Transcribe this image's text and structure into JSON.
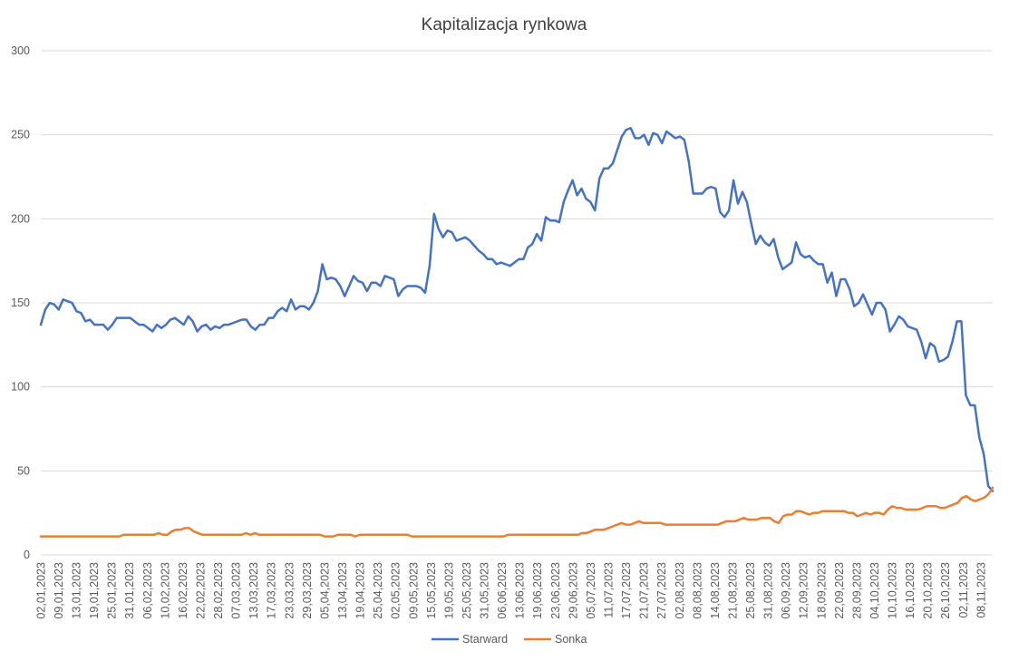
{
  "chart_data": {
    "type": "line",
    "title": "Kapitalizacja rynkowa",
    "xlabel": "",
    "ylabel": "",
    "ylim": [
      0,
      300
    ],
    "yticks": [
      "0",
      "50",
      "100",
      "150",
      "200",
      "250",
      "300"
    ],
    "grid": true,
    "legend_position": "bottom",
    "x_tick_labels": [
      "02,01,2023",
      "09,01,2023",
      "13,01,2023",
      "19,01,2023",
      "25,01,2023",
      "31,01,2023",
      "06,02,2023",
      "10,02,2023",
      "16,02,2023",
      "22,02,2023",
      "28,02,2023",
      "07,03,2023",
      "13,03,2023",
      "17,03,2023",
      "23,03,2023",
      "29,03,2023",
      "05,04,2023",
      "13,04,2023",
      "19,04,2023",
      "25,04,2023",
      "02,05,2023",
      "09,05,2023",
      "15,05,2023",
      "19,05,2023",
      "25,05,2023",
      "31,05,2023",
      "06,06,2023",
      "13,06,2023",
      "19,06,2023",
      "23,06,2023",
      "29,06,2023",
      "05,07,2023",
      "11,07,2023",
      "17,07,2023",
      "21,07,2023",
      "27,07,2023",
      "02,08,2023",
      "08,08,2023",
      "14,08,2023",
      "21,08,2023",
      "25,08,2023",
      "31,08,2023",
      "06,09,2023",
      "12,09,2023",
      "18,09,2023",
      "22,09,2023",
      "28,09,2023",
      "04,10,2023",
      "10,10,2023",
      "16,10,2023",
      "20,10,2023",
      "26,10,2023",
      "02,11,2023",
      "08,11,2023"
    ],
    "series": [
      {
        "name": "Starward",
        "color": "#4472C4",
        "values": [
          137,
          146,
          150,
          149,
          146,
          152,
          151,
          150,
          145,
          144,
          139,
          140,
          137,
          137,
          137,
          134,
          137,
          141,
          141,
          141,
          141,
          139,
          137,
          137,
          135,
          133,
          137,
          135,
          137,
          140,
          141,
          139,
          137,
          142,
          139,
          133,
          136,
          137,
          134,
          136,
          135,
          137,
          137,
          138,
          139,
          140,
          140,
          136,
          134,
          137,
          137,
          141,
          141,
          145,
          147,
          145,
          152,
          146,
          148,
          148,
          146,
          150,
          157,
          173,
          164,
          165,
          164,
          160,
          154,
          160,
          166,
          163,
          162,
          157,
          162,
          162,
          160,
          166,
          165,
          164,
          154,
          158,
          160,
          160,
          160,
          159,
          156,
          172,
          203,
          194,
          189,
          193,
          192,
          187,
          188,
          189,
          187,
          184,
          181,
          179,
          176,
          176,
          173,
          174,
          173,
          172,
          174,
          176,
          176,
          183,
          185,
          191,
          187,
          201,
          199,
          199,
          198,
          210,
          217,
          223,
          214,
          218,
          212,
          210,
          205,
          224,
          230,
          230,
          233,
          241,
          249,
          253,
          254,
          248,
          248,
          250,
          244,
          251,
          250,
          245,
          252,
          250,
          248,
          249,
          247,
          234,
          215,
          215,
          215,
          218,
          219,
          218,
          204,
          201,
          205,
          223,
          209,
          216,
          210,
          197,
          185,
          190,
          186,
          184,
          188,
          177,
          170,
          172,
          174,
          186,
          179,
          177,
          178,
          175,
          173,
          173,
          162,
          168,
          154,
          164,
          164,
          158,
          148,
          150,
          155,
          149,
          143,
          150,
          150,
          146,
          133,
          137,
          142,
          140,
          136,
          135,
          134,
          127,
          117,
          126,
          124,
          115,
          116,
          118,
          127,
          139,
          139,
          95,
          89,
          89,
          70,
          60,
          41,
          38
        ]
      },
      {
        "name": "Sonka",
        "color": "#ED7D31",
        "values": [
          11,
          11,
          11,
          11,
          11,
          11,
          11,
          11,
          11,
          11,
          11,
          11,
          11,
          11,
          11,
          11,
          11,
          11,
          11,
          12,
          12,
          12,
          12,
          12,
          12,
          12,
          12,
          13,
          12,
          12,
          14,
          15,
          15,
          16,
          16,
          14,
          13,
          12,
          12,
          12,
          12,
          12,
          12,
          12,
          12,
          12,
          12,
          13,
          12,
          13,
          12,
          12,
          12,
          12,
          12,
          12,
          12,
          12,
          12,
          12,
          12,
          12,
          12,
          12,
          12,
          11,
          11,
          11,
          12,
          12,
          12,
          12,
          11,
          12,
          12,
          12,
          12,
          12,
          12,
          12,
          12,
          12,
          12,
          12,
          12,
          11,
          11,
          11,
          11,
          11,
          11,
          11,
          11,
          11,
          11,
          11,
          11,
          11,
          11,
          11,
          11,
          11,
          11,
          11,
          11,
          11,
          11,
          12,
          12,
          12,
          12,
          12,
          12,
          12,
          12,
          12,
          12,
          12,
          12,
          12,
          12,
          12,
          12,
          12,
          13,
          13,
          14,
          15,
          15,
          15,
          16,
          17,
          18,
          19,
          18,
          18,
          19,
          20,
          19,
          19,
          19,
          19,
          19,
          18,
          18,
          18,
          18,
          18,
          18,
          18,
          18,
          18,
          18,
          18,
          18,
          18,
          19,
          20,
          20,
          20,
          21,
          22,
          21,
          21,
          21,
          22,
          22,
          22,
          20,
          19,
          23,
          24,
          24,
          26,
          26,
          25,
          24,
          25,
          25,
          26,
          26,
          26,
          26,
          26,
          26,
          25,
          25,
          23,
          24,
          25,
          24,
          25,
          25,
          24,
          27,
          29,
          28,
          28,
          27,
          27,
          27,
          27,
          28,
          29,
          29,
          29,
          28,
          28,
          29,
          30,
          31,
          34,
          35,
          33,
          32,
          33,
          34,
          36,
          40
        ]
      }
    ]
  }
}
